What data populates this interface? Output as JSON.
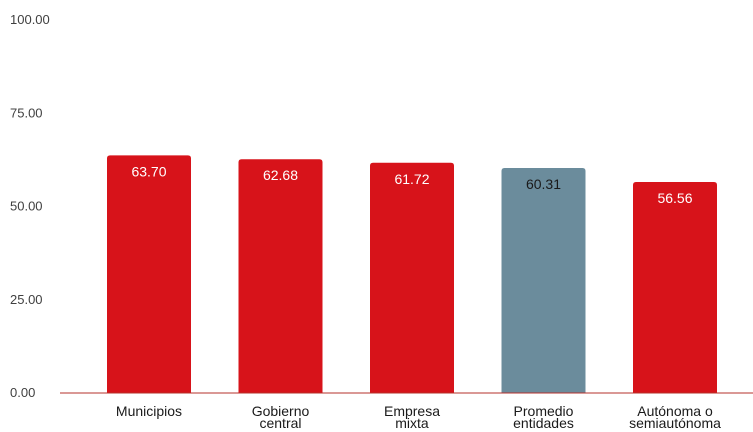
{
  "colors": {
    "bar_primary": "#d7131a",
    "bar_highlight": "#6b8c9c",
    "baseline": "#b5302b",
    "label_on_primary": "#ffffff",
    "label_on_highlight": "#1a1a1a"
  },
  "chart_data": {
    "type": "bar",
    "title": "",
    "xlabel": "",
    "ylabel": "",
    "ylim": [
      0,
      100
    ],
    "yticks": [
      "0.00",
      "25.00",
      "50.00",
      "75.00",
      "100.00"
    ],
    "grid": false,
    "categories": [
      [
        "Municipios"
      ],
      [
        "Gobierno",
        "central"
      ],
      [
        "Empresa",
        "mixta"
      ],
      [
        "Promedio",
        "entidades"
      ],
      [
        "Autónoma o",
        "semiautónoma"
      ]
    ],
    "values": [
      63.7,
      62.68,
      61.72,
      60.31,
      56.56
    ],
    "value_labels": [
      "63.70",
      "62.68",
      "61.72",
      "60.31",
      "56.56"
    ],
    "highlight_index": 3
  }
}
